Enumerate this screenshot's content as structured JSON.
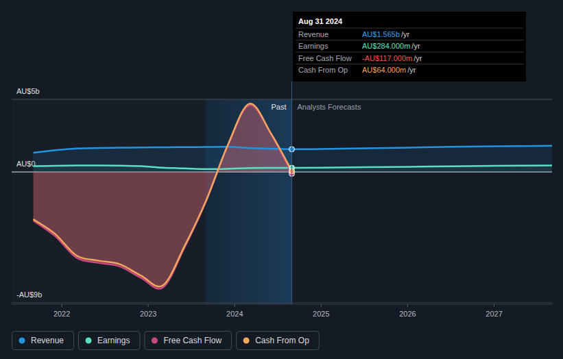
{
  "chart_data": {
    "type": "line",
    "x": [
      2021.67,
      2021.92,
      2022.17,
      2022.42,
      2022.67,
      2022.92,
      2023.17,
      2023.42,
      2023.67,
      2023.92,
      2024.17,
      2024.42,
      2024.66,
      2025.0,
      2025.5,
      2026.0,
      2026.5,
      2027.0,
      2027.67
    ],
    "series": [
      {
        "name": "Revenue",
        "color": "#2394df",
        "values": [
          1.32,
          1.5,
          1.62,
          1.65,
          1.67,
          1.69,
          1.7,
          1.71,
          1.72,
          1.73,
          1.65,
          1.6,
          1.565,
          1.58,
          1.63,
          1.68,
          1.73,
          1.77,
          1.8
        ]
      },
      {
        "name": "Earnings",
        "color": "#5ae0c0",
        "values": [
          0.4,
          0.43,
          0.45,
          0.45,
          0.44,
          0.4,
          0.3,
          0.25,
          0.2,
          0.22,
          0.27,
          0.28,
          0.284,
          0.3,
          0.33,
          0.36,
          0.39,
          0.42,
          0.45
        ]
      },
      {
        "name": "Free Cash Flow",
        "color": "#c9487e",
        "values": [
          -3.35,
          -4.4,
          -5.9,
          -6.25,
          -6.5,
          -7.3,
          -7.95,
          -5.2,
          -2.0,
          1.8,
          4.6,
          2.6,
          -0.117,
          null,
          null,
          null,
          null,
          null,
          null
        ]
      },
      {
        "name": "Cash From Op",
        "color": "#f2a65e",
        "values": [
          -3.25,
          -4.25,
          -5.75,
          -6.1,
          -6.35,
          -7.15,
          -7.8,
          -5.1,
          -1.95,
          1.85,
          4.7,
          2.65,
          0.064,
          null,
          null,
          null,
          null,
          null,
          null
        ]
      }
    ],
    "xlim": [
      2021.42,
      2027.67
    ],
    "xticks": [
      2022,
      2023,
      2024,
      2025,
      2026,
      2027
    ],
    "ylim": [
      -9.1,
      5
    ],
    "yticks": [
      {
        "value": 5,
        "label": "AU$5b"
      },
      {
        "value": 0,
        "label": "AU$0"
      },
      {
        "value": -9,
        "label": "-AU$9b"
      }
    ],
    "grid": true,
    "legend": "bottom",
    "annotations": {
      "past": "Past",
      "forecast": "Analysts Forecasts",
      "past_range": [
        2023.66,
        2024.66
      ],
      "tooltip": {
        "title": "Aug 31 2024",
        "values": [
          "AU$1.565b",
          "AU$284.000m",
          "-AU$117.000m",
          "AU$64.000m"
        ],
        "unit": "/yr"
      }
    }
  }
}
